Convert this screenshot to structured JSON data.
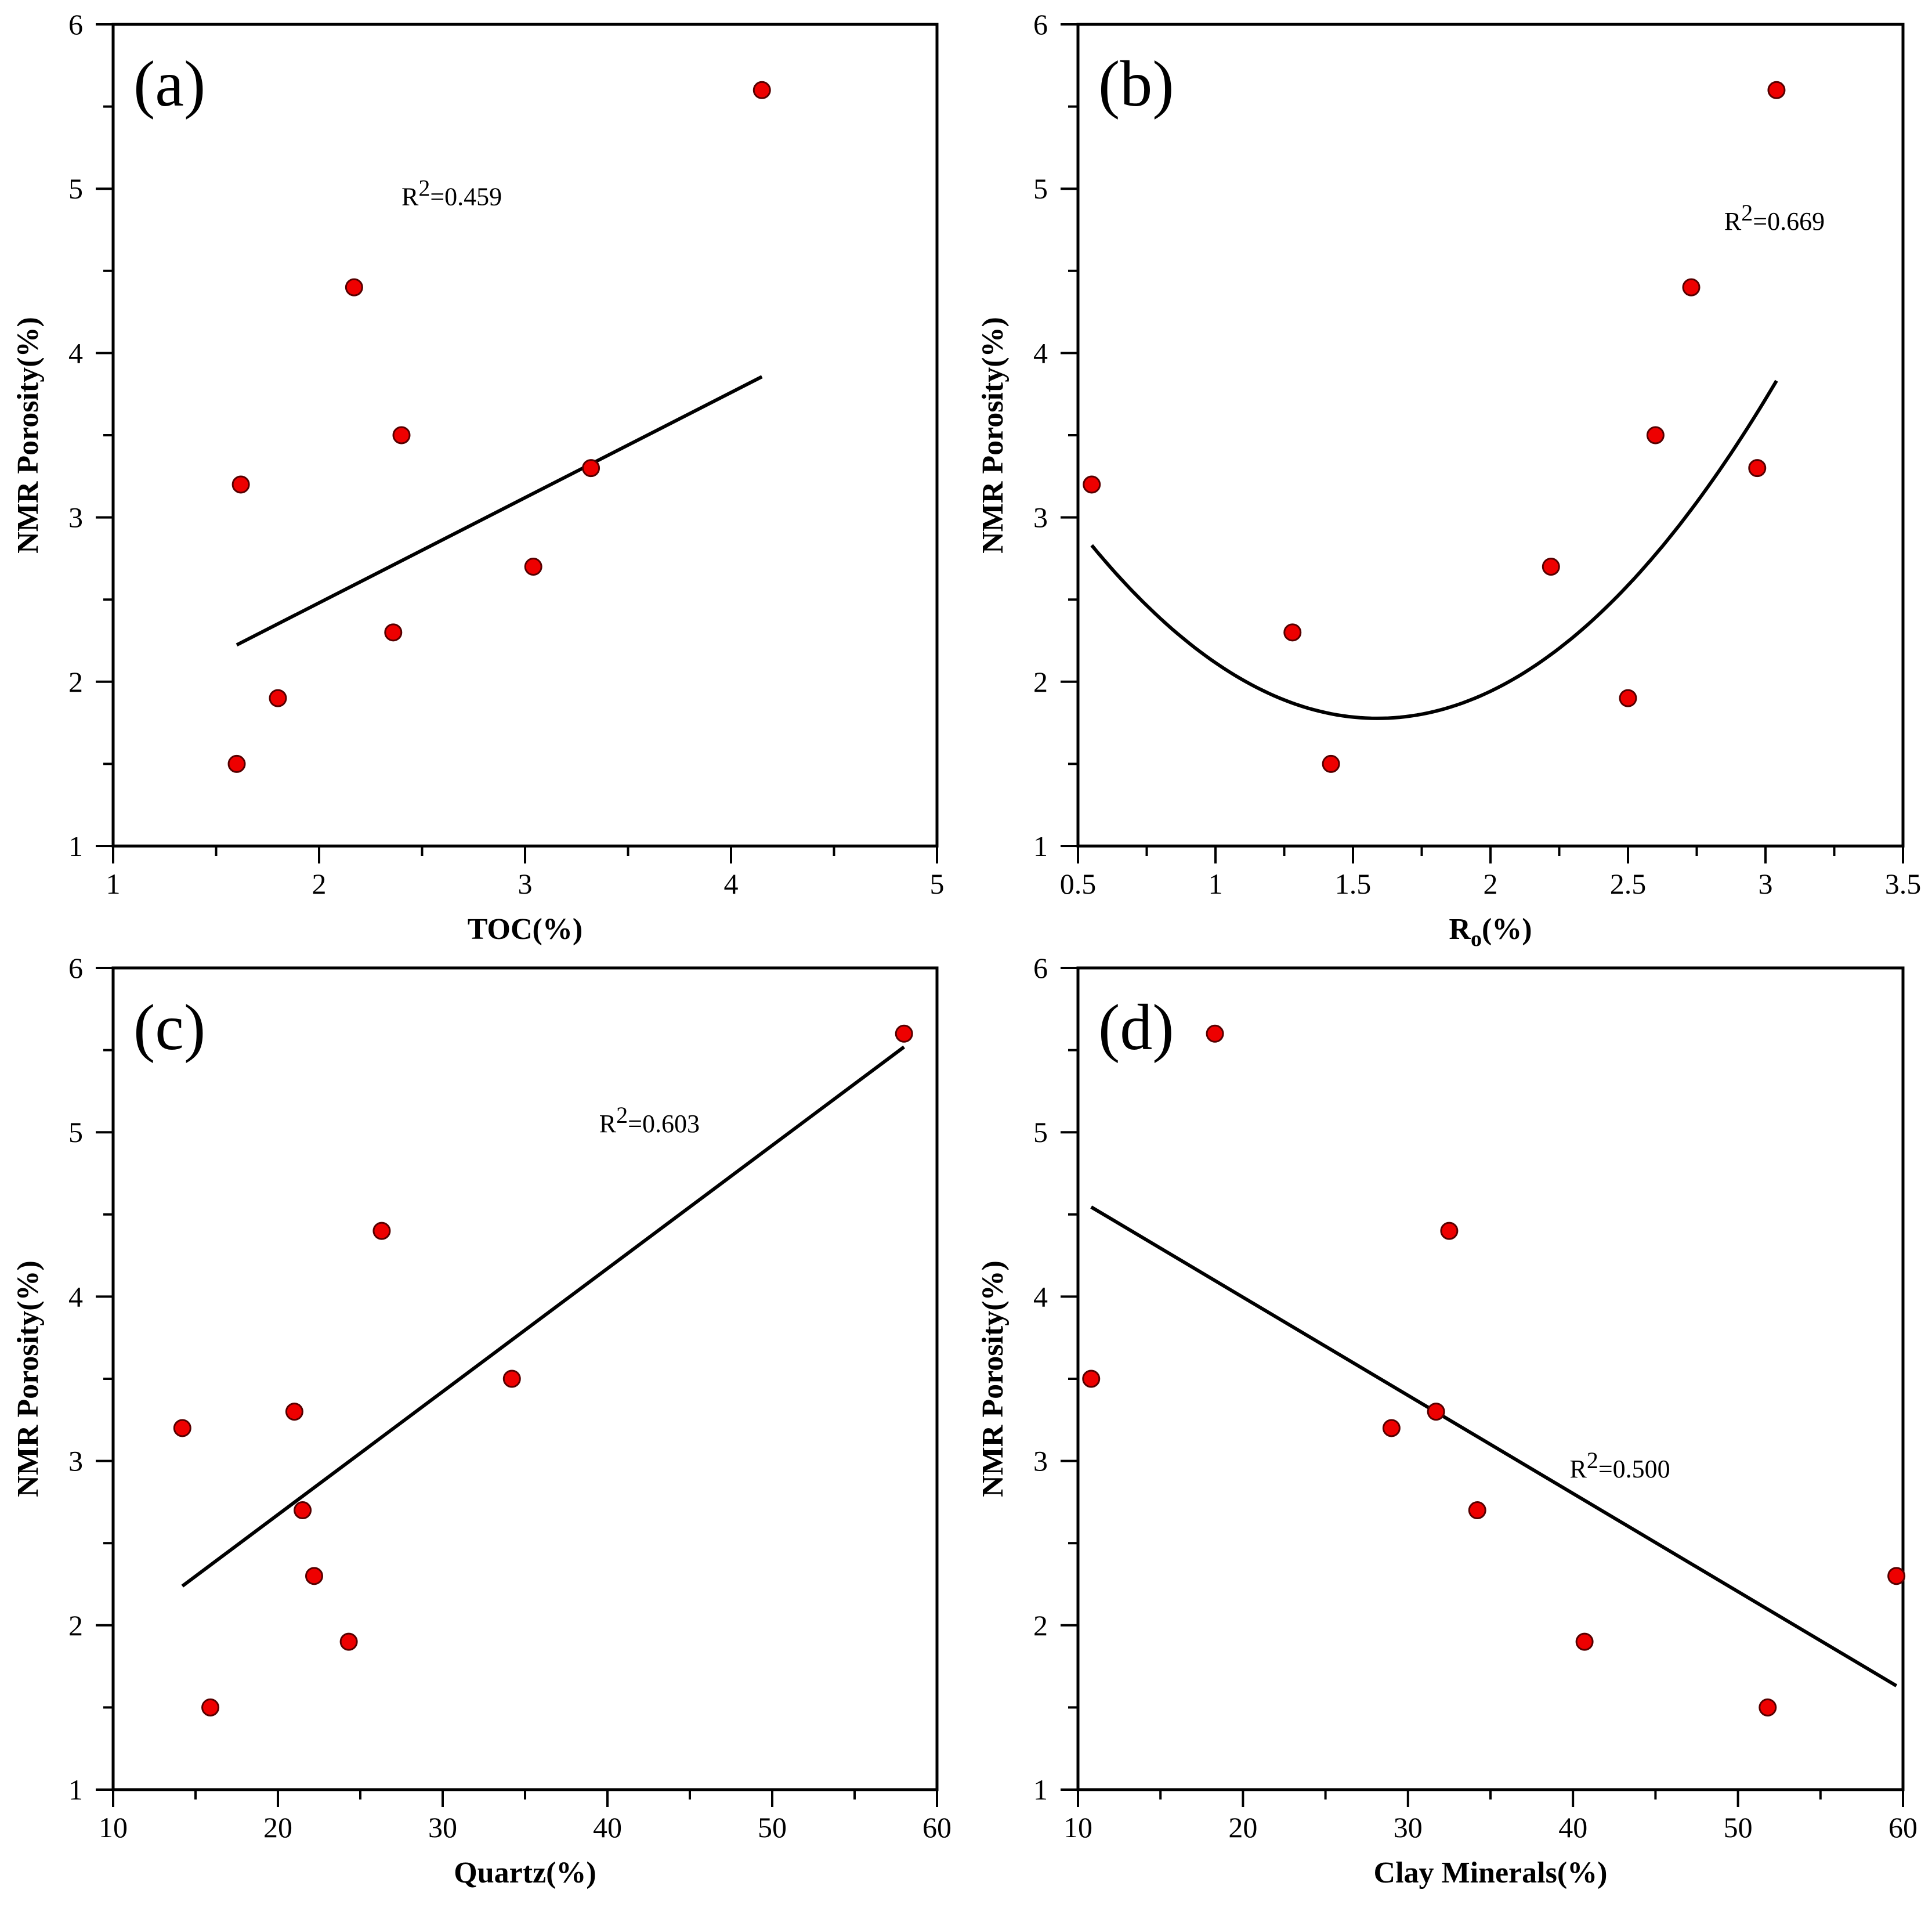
{
  "colors": {
    "point_fill": "#ee0000",
    "point_stroke": "#550000",
    "line": "#000000",
    "axis": "#000000"
  },
  "chart_data": [
    {
      "type": "scatter",
      "panel_label": "(a)",
      "xlabel": "TOC(%)",
      "ylabel": "NMR Porosity(%)",
      "xlim": [
        1,
        5
      ],
      "ylim": [
        1,
        6
      ],
      "x_major_ticks": [
        1,
        2,
        3,
        4,
        5
      ],
      "x_tick_labels": [
        "1",
        "2",
        "3",
        "4",
        "5"
      ],
      "x_minor_ticks": [
        1.5,
        2.5,
        3.5,
        4.5
      ],
      "y_major_ticks": [
        1,
        2,
        3,
        4,
        5,
        6
      ],
      "y_tick_labels": [
        "1",
        "2",
        "3",
        "4",
        "5",
        "6"
      ],
      "y_minor_ticks": [
        1.5,
        2.5,
        3.5,
        4.5,
        5.5
      ],
      "x": [
        1.6,
        1.62,
        1.8,
        2.17,
        2.36,
        2.4,
        3.04,
        3.32,
        4.15
      ],
      "y": [
        1.5,
        3.2,
        1.9,
        4.4,
        2.3,
        3.5,
        2.7,
        3.3,
        5.6
      ],
      "fit": {
        "type": "linear",
        "x_range": [
          1.6,
          4.15
        ],
        "coefficients": [
          0.64,
          1.2
        ]
      },
      "r2_text": "=0.459",
      "r2_label_pos": [
        2.4,
        4.9
      ]
    },
    {
      "type": "scatter",
      "panel_label": "(b)",
      "xlabel_main": "R",
      "xlabel_sub": "o",
      "xlabel_rest": "(%)",
      "ylabel": "NMR Porosity(%)",
      "xlim": [
        0.5,
        3.5
      ],
      "ylim": [
        1,
        6
      ],
      "x_major_ticks": [
        0.5,
        1,
        1.5,
        2,
        2.5,
        3,
        3.5
      ],
      "x_tick_labels": [
        "0.5",
        "1",
        "1.5",
        "2",
        "2.5",
        "3",
        "3.5"
      ],
      "x_minor_ticks": [
        0.75,
        1.25,
        1.75,
        2.25,
        2.75,
        3.25
      ],
      "y_major_ticks": [
        1,
        2,
        3,
        4,
        5,
        6
      ],
      "y_tick_labels": [
        "1",
        "2",
        "3",
        "4",
        "5",
        "6"
      ],
      "y_minor_ticks": [
        1.5,
        2.5,
        3.5,
        4.5,
        5.5
      ],
      "x": [
        0.55,
        1.28,
        1.42,
        2.22,
        2.5,
        2.6,
        2.73,
        2.97,
        3.04
      ],
      "y": [
        3.2,
        2.3,
        1.5,
        2.7,
        1.9,
        3.5,
        4.4,
        3.3,
        5.6
      ],
      "fit": {
        "type": "quadratic",
        "x_range": [
          0.55,
          3.04
        ],
        "coefficients": [
          0.9755,
          -3.1,
          4.24
        ]
      },
      "r2_text": "=0.669",
      "r2_label_pos": [
        2.85,
        4.75
      ]
    },
    {
      "type": "scatter",
      "panel_label": "(c)",
      "xlabel": "Quartz(%)",
      "ylabel": "NMR Porosity(%)",
      "xlim": [
        10,
        60
      ],
      "ylim": [
        1,
        6
      ],
      "x_major_ticks": [
        10,
        20,
        30,
        40,
        50,
        60
      ],
      "x_tick_labels": [
        "10",
        "20",
        "30",
        "40",
        "50",
        "60"
      ],
      "x_minor_ticks": [
        15,
        25,
        35,
        45,
        55
      ],
      "y_major_ticks": [
        1,
        2,
        3,
        4,
        5,
        6
      ],
      "y_tick_labels": [
        "1",
        "2",
        "3",
        "4",
        "5",
        "6"
      ],
      "y_minor_ticks": [
        1.5,
        2.5,
        3.5,
        4.5,
        5.5
      ],
      "x": [
        14.2,
        15.9,
        21.0,
        21.5,
        22.2,
        24.3,
        26.3,
        34.2,
        58.0
      ],
      "y": [
        3.2,
        1.5,
        3.3,
        2.7,
        2.3,
        1.9,
        4.4,
        3.5,
        5.6
      ],
      "fit": {
        "type": "linear",
        "x_range": [
          14.2,
          58.0
        ],
        "coefficients": [
          0.0749,
          1.175
        ]
      },
      "r2_text": "=0.603",
      "r2_label_pos": [
        39.5,
        5.0
      ]
    },
    {
      "type": "scatter",
      "panel_label": "(d)",
      "xlabel": "Clay Minerals(%)",
      "ylabel": "NMR Porosity(%)",
      "xlim": [
        10,
        60
      ],
      "ylim": [
        1,
        6
      ],
      "x_major_ticks": [
        10,
        20,
        30,
        40,
        50,
        60
      ],
      "x_tick_labels": [
        "10",
        "20",
        "30",
        "40",
        "50",
        "60"
      ],
      "x_minor_ticks": [
        15,
        25,
        35,
        45,
        55
      ],
      "y_major_ticks": [
        1,
        2,
        3,
        4,
        5,
        6
      ],
      "y_tick_labels": [
        "1",
        "2",
        "3",
        "4",
        "5",
        "6"
      ],
      "y_minor_ticks": [
        1.5,
        2.5,
        3.5,
        4.5,
        5.5
      ],
      "x": [
        10.8,
        18.3,
        29.0,
        31.7,
        32.5,
        34.2,
        40.7,
        51.8,
        59.6
      ],
      "y": [
        3.5,
        5.6,
        3.2,
        3.3,
        4.4,
        2.7,
        1.9,
        1.5,
        2.3
      ],
      "fit": {
        "type": "linear",
        "x_range": [
          10.8,
          59.6
        ],
        "coefficients": [
          -0.0597,
          5.19
        ]
      },
      "r2_text": "=0.500",
      "r2_label_pos": [
        39.8,
        2.9
      ]
    }
  ]
}
